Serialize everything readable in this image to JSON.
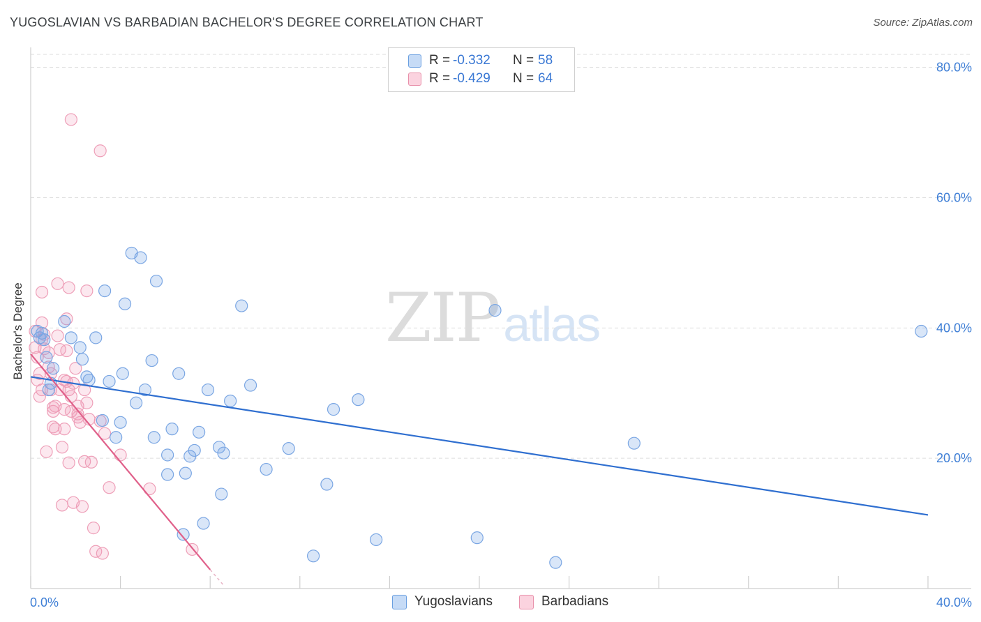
{
  "title": "YUGOSLAVIAN VS BARBADIAN BACHELOR'S DEGREE CORRELATION CHART",
  "source": "Source: ZipAtlas.com",
  "watermark": {
    "zip": "ZIP",
    "atlas": "atlas"
  },
  "legend": {
    "r_label": "R =",
    "n_label": "N =",
    "rows": [
      {
        "r": "-0.332",
        "n": "58",
        "color": "#a8c8f0",
        "border": "#6a9fe0"
      },
      {
        "r": "-0.429",
        "n": "64",
        "color": "#f8c0d0",
        "border": "#e890aa"
      }
    ]
  },
  "colors": {
    "blue_fill": "rgba(120,165,230,0.28)",
    "blue_stroke": "#7aa6e3",
    "blue_line": "#2f6fd0",
    "pink_fill": "rgba(240,150,180,0.22)",
    "pink_stroke": "#ee9fb8",
    "pink_line": "#e0608a",
    "grid": "#dddddd",
    "axis_text": "#3f7fd6"
  },
  "chart_data": {
    "type": "scatter",
    "title": "YUGOSLAVIAN VS BARBADIAN BACHELOR'S DEGREE CORRELATION CHART",
    "xlabel": "",
    "ylabel": "Bachelor's Degree",
    "xlim": [
      0,
      40
    ],
    "ylim": [
      0,
      82
    ],
    "x_tick_labels": [
      {
        "value": 0,
        "label": "0.0%"
      },
      {
        "value": 40,
        "label": "40.0%"
      }
    ],
    "y_tick_labels": [
      {
        "value": 20,
        "label": "20.0%"
      },
      {
        "value": 40,
        "label": "40.0%"
      },
      {
        "value": 60,
        "label": "60.0%"
      },
      {
        "value": 80,
        "label": "80.0%"
      }
    ],
    "series": [
      {
        "name": "Yugoslavians",
        "r": -0.332,
        "n": 58,
        "trend": {
          "x0": 0.0,
          "y0": 32.5,
          "x1": 40.0,
          "y1": 11.3
        },
        "points": [
          [
            0.3,
            39.5
          ],
          [
            0.4,
            38.5
          ],
          [
            0.6,
            38.2
          ],
          [
            0.7,
            35.5
          ],
          [
            0.9,
            31.5
          ],
          [
            0.8,
            30.5
          ],
          [
            1.0,
            33.8
          ],
          [
            1.5,
            41.0
          ],
          [
            1.8,
            38.5
          ],
          [
            2.2,
            37.0
          ],
          [
            2.3,
            35.2
          ],
          [
            2.5,
            32.5
          ],
          [
            2.6,
            32.0
          ],
          [
            2.9,
            38.5
          ],
          [
            3.2,
            25.8
          ],
          [
            3.3,
            45.7
          ],
          [
            3.5,
            31.8
          ],
          [
            3.8,
            23.2
          ],
          [
            4.0,
            25.5
          ],
          [
            4.1,
            33.0
          ],
          [
            4.2,
            43.7
          ],
          [
            4.5,
            51.5
          ],
          [
            4.7,
            28.5
          ],
          [
            4.9,
            50.8
          ],
          [
            5.1,
            30.5
          ],
          [
            5.4,
            35.0
          ],
          [
            5.5,
            23.2
          ],
          [
            5.6,
            47.2
          ],
          [
            6.1,
            20.5
          ],
          [
            6.1,
            17.5
          ],
          [
            6.3,
            24.5
          ],
          [
            6.6,
            33.0
          ],
          [
            6.8,
            8.3
          ],
          [
            6.9,
            17.7
          ],
          [
            7.1,
            20.3
          ],
          [
            7.3,
            21.2
          ],
          [
            7.5,
            24.0
          ],
          [
            7.7,
            10.0
          ],
          [
            7.9,
            30.5
          ],
          [
            8.4,
            21.7
          ],
          [
            8.5,
            14.5
          ],
          [
            8.6,
            20.8
          ],
          [
            8.9,
            28.8
          ],
          [
            9.4,
            43.4
          ],
          [
            9.8,
            31.2
          ],
          [
            10.5,
            18.3
          ],
          [
            11.5,
            21.5
          ],
          [
            12.6,
            5.0
          ],
          [
            13.2,
            16.0
          ],
          [
            13.5,
            27.5
          ],
          [
            14.6,
            29.0
          ],
          [
            15.4,
            7.5
          ],
          [
            19.9,
            7.8
          ],
          [
            20.7,
            42.7
          ],
          [
            23.4,
            4.0
          ],
          [
            26.9,
            22.3
          ],
          [
            39.7,
            39.5
          ],
          [
            0.5,
            39.2
          ]
        ]
      },
      {
        "name": "Barbadians",
        "r": -0.429,
        "n": 64,
        "trend": {
          "x0": 0.0,
          "y0": 36.0,
          "x1": 8.0,
          "y1": 2.9
        },
        "trend_extension": {
          "x0": 8.0,
          "y0": 2.9,
          "x1": 8.6,
          "y1": 0.5
        },
        "points": [
          [
            1.8,
            72.0
          ],
          [
            3.1,
            67.2
          ],
          [
            0.2,
            39.5
          ],
          [
            0.2,
            37.0
          ],
          [
            0.3,
            35.5
          ],
          [
            0.4,
            33.0
          ],
          [
            0.5,
            30.5
          ],
          [
            0.4,
            29.5
          ],
          [
            0.5,
            45.5
          ],
          [
            0.5,
            40.8
          ],
          [
            0.5,
            38.2
          ],
          [
            0.6,
            36.8
          ],
          [
            0.8,
            36.2
          ],
          [
            0.8,
            34.0
          ],
          [
            0.9,
            33.0
          ],
          [
            0.9,
            30.5
          ],
          [
            0.7,
            21.0
          ],
          [
            1.0,
            27.8
          ],
          [
            1.0,
            27.2
          ],
          [
            1.0,
            24.8
          ],
          [
            1.1,
            24.5
          ],
          [
            1.1,
            28.0
          ],
          [
            1.2,
            46.8
          ],
          [
            1.3,
            36.7
          ],
          [
            1.3,
            30.5
          ],
          [
            1.4,
            21.7
          ],
          [
            1.4,
            12.8
          ],
          [
            1.5,
            27.5
          ],
          [
            1.5,
            24.5
          ],
          [
            1.6,
            41.4
          ],
          [
            1.7,
            46.2
          ],
          [
            1.6,
            36.5
          ],
          [
            1.6,
            31.8
          ],
          [
            1.7,
            30.5
          ],
          [
            1.7,
            19.3
          ],
          [
            1.8,
            29.5
          ],
          [
            1.8,
            27.2
          ],
          [
            1.9,
            31.5
          ],
          [
            1.9,
            13.2
          ],
          [
            2.0,
            33.8
          ],
          [
            2.1,
            26.8
          ],
          [
            2.1,
            26.3
          ],
          [
            2.1,
            28.0
          ],
          [
            2.2,
            25.5
          ],
          [
            2.3,
            12.6
          ],
          [
            2.4,
            19.5
          ],
          [
            2.4,
            30.5
          ],
          [
            2.5,
            45.7
          ],
          [
            2.5,
            28.5
          ],
          [
            2.6,
            26.0
          ],
          [
            2.7,
            19.4
          ],
          [
            2.8,
            9.3
          ],
          [
            2.9,
            5.7
          ],
          [
            3.1,
            25.7
          ],
          [
            3.2,
            5.4
          ],
          [
            3.3,
            23.8
          ],
          [
            3.5,
            15.5
          ],
          [
            4.0,
            20.5
          ],
          [
            5.3,
            15.3
          ],
          [
            7.2,
            6.0
          ],
          [
            0.3,
            32.0
          ],
          [
            0.6,
            39.0
          ],
          [
            1.2,
            38.8
          ],
          [
            1.5,
            32.0
          ]
        ]
      }
    ]
  }
}
